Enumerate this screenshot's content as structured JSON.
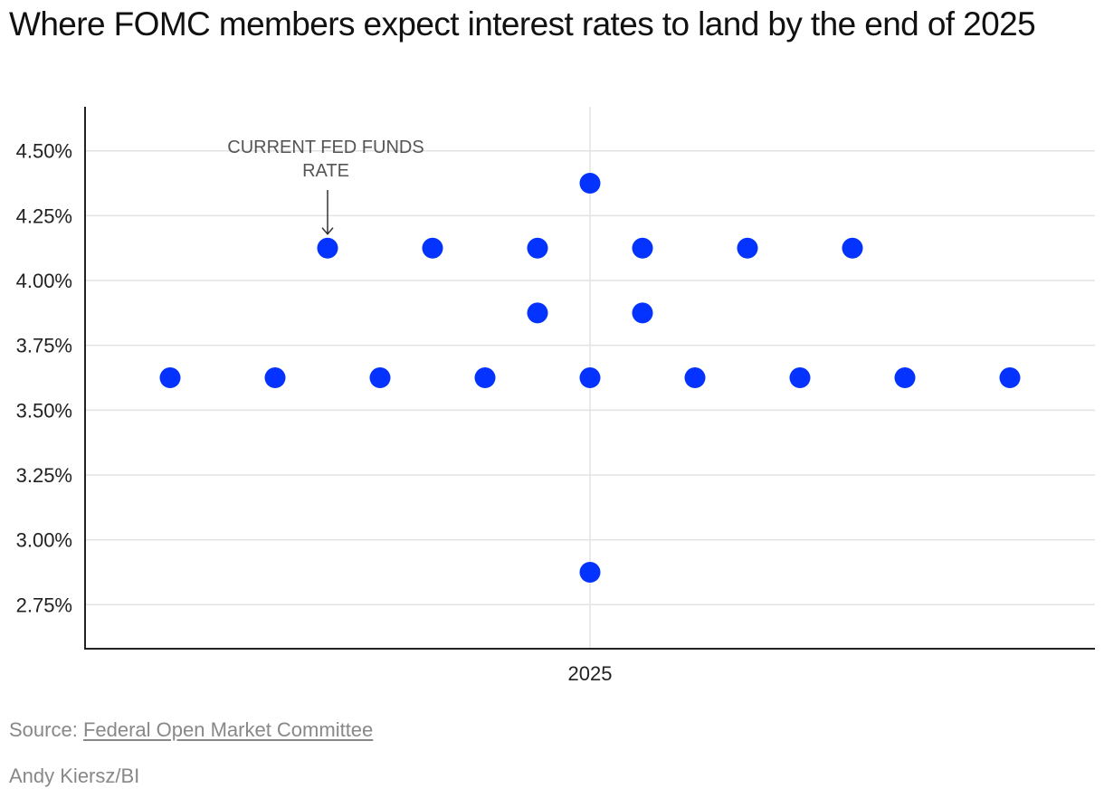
{
  "title": "Where FOMC members expect interest rates to land by the end of 2025",
  "source_prefix": "Source: ",
  "source_link": "Federal Open Market Committee",
  "credit": "Andy Kiersz/BI",
  "dot_color": "#0433ff",
  "chart_data": {
    "type": "scatter",
    "title": "Where FOMC members expect interest rates to land by the end of 2025",
    "xlabel": "",
    "ylabel": "",
    "categories": [
      "2025"
    ],
    "y_ticks": [
      "2.75%",
      "3.00%",
      "3.25%",
      "3.50%",
      "3.75%",
      "4.00%",
      "4.25%",
      "4.50%"
    ],
    "y_tick_values": [
      2.75,
      3.0,
      3.25,
      3.5,
      3.75,
      4.0,
      4.25,
      4.5
    ],
    "ylim": [
      2.58,
      4.67
    ],
    "grid": true,
    "points": [
      {
        "year": "2025",
        "rate": 4.375,
        "count": 1
      },
      {
        "year": "2025",
        "rate": 4.125,
        "count": 6
      },
      {
        "year": "2025",
        "rate": 3.875,
        "count": 2
      },
      {
        "year": "2025",
        "rate": 3.625,
        "count": 9
      },
      {
        "year": "2025",
        "rate": 2.875,
        "count": 1
      }
    ],
    "annotation": {
      "text_lines": [
        "CURRENT FED FUNDS",
        "RATE"
      ],
      "rate": 4.125
    }
  }
}
